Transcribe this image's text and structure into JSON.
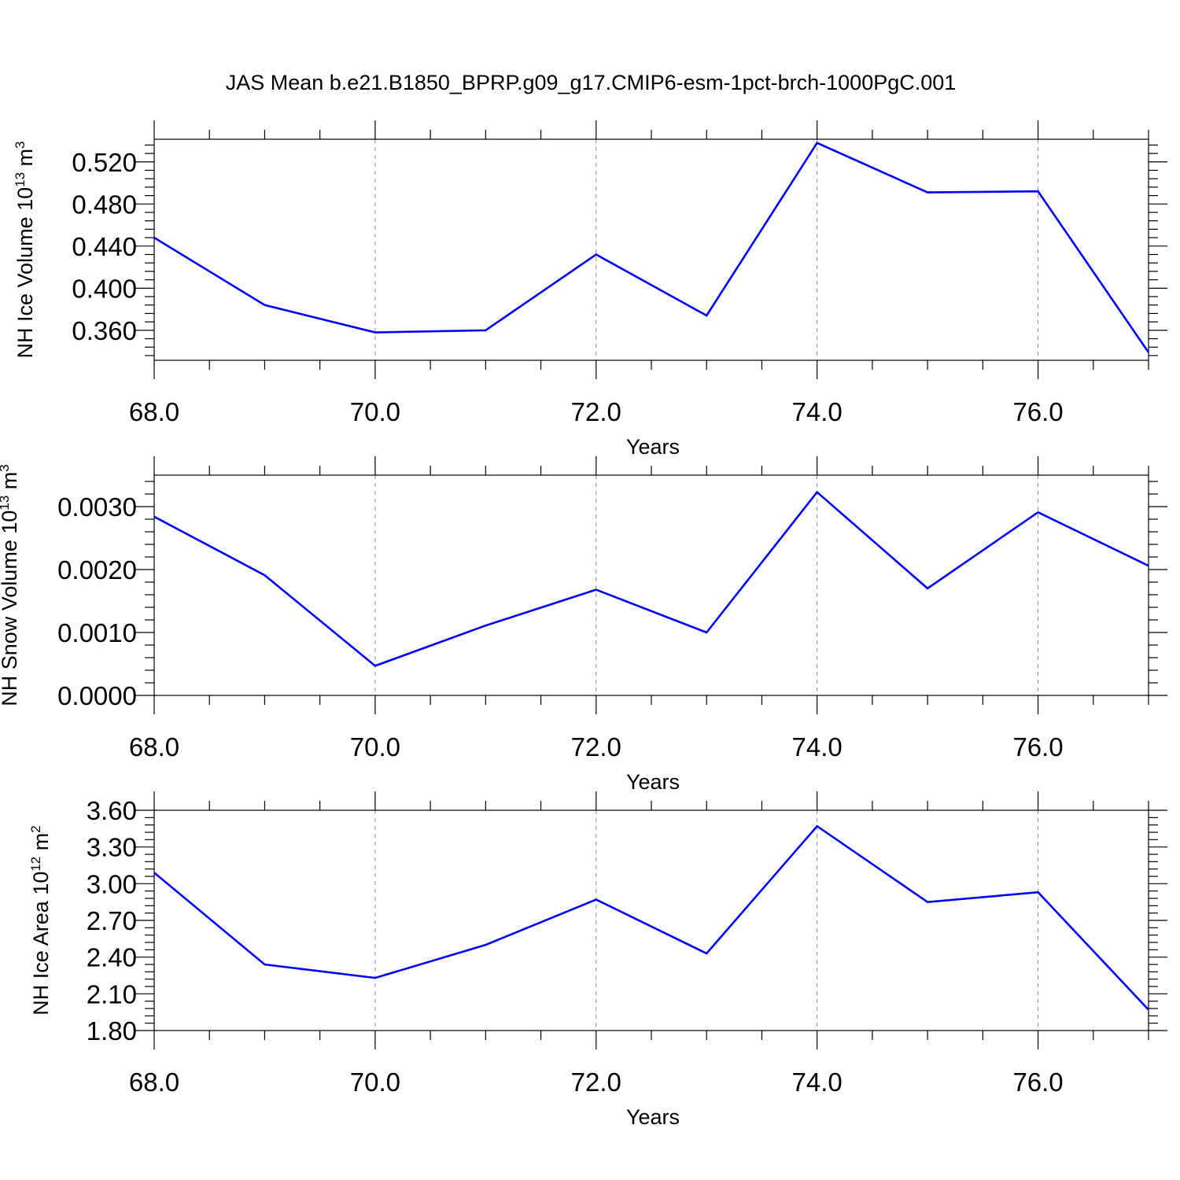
{
  "title": "JAS Mean b.e21.B1850_BPRP.g09_g17.CMIP6-esm-1pct-brch-1000PgC.001",
  "colors": {
    "line": "#0000ff",
    "axes": "#000000",
    "grid": "#8c8c8c"
  },
  "chart_data": [
    {
      "type": "line",
      "title": "",
      "xlabel": "Years",
      "ylabel_parts": [
        "NH Ice Volume 10",
        "13",
        " m",
        "3"
      ],
      "x": [
        68,
        69,
        70,
        71,
        72,
        73,
        74,
        75,
        76,
        77
      ],
      "x_tick_labels": [
        "68.0",
        "70.0",
        "72.0",
        "74.0",
        "76.0"
      ],
      "y_tick_labels": [
        "0.360",
        "0.400",
        "0.440",
        "0.480",
        "0.520"
      ],
      "xlim": [
        68,
        77
      ],
      "ylim": [
        0.3315,
        0.5415
      ],
      "grid": "vertical dashed at major x ticks",
      "series": [
        {
          "values": [
            0.448,
            0.384,
            0.358,
            0.36,
            0.432,
            0.374,
            0.538,
            0.491,
            0.492,
            0.339
          ]
        }
      ]
    },
    {
      "type": "line",
      "title": "",
      "xlabel": "Years",
      "ylabel_parts": [
        "NH Snow Volume 10",
        "13",
        " m",
        "3"
      ],
      "x": [
        68,
        69,
        70,
        71,
        72,
        73,
        74,
        75,
        76,
        77
      ],
      "x_tick_labels": [
        "68.0",
        "70.0",
        "72.0",
        "74.0",
        "76.0"
      ],
      "y_tick_labels": [
        "0.0000",
        "0.0010",
        "0.0020",
        "0.0030"
      ],
      "xlim": [
        68,
        77
      ],
      "ylim": [
        0.0,
        0.0035
      ],
      "grid": "vertical dashed at major x ticks",
      "series": [
        {
          "values": [
            0.00284,
            0.00191,
            0.00047,
            0.00111,
            0.00168,
            0.001,
            0.00323,
            0.0017,
            0.00291,
            0.00206
          ]
        }
      ]
    },
    {
      "type": "line",
      "title": "",
      "xlabel": "Years",
      "ylabel_parts": [
        "NH Ice Area 10",
        "12",
        " m",
        "2"
      ],
      "x": [
        68,
        69,
        70,
        71,
        72,
        73,
        74,
        75,
        76,
        77
      ],
      "x_tick_labels": [
        "68.0",
        "70.0",
        "72.0",
        "74.0",
        "76.0"
      ],
      "y_tick_labels": [
        "1.80",
        "2.10",
        "2.40",
        "2.70",
        "3.00",
        "3.30",
        "3.60"
      ],
      "xlim": [
        68,
        77
      ],
      "ylim": [
        1.8,
        3.6
      ],
      "grid": "vertical dashed at major x ticks",
      "series": [
        {
          "values": [
            3.09,
            2.34,
            2.23,
            2.5,
            2.87,
            2.43,
            3.47,
            2.85,
            2.93,
            1.97
          ]
        }
      ]
    }
  ]
}
